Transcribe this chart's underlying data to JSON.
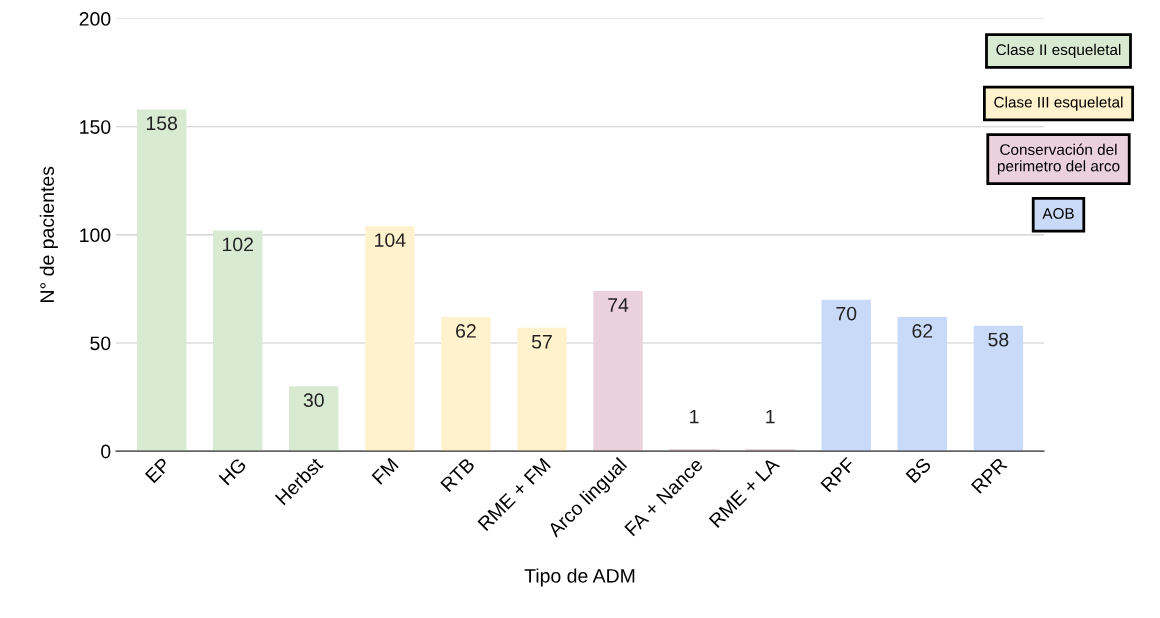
{
  "chart_data": {
    "type": "bar",
    "xlabel": "Tipo de ADM",
    "ylabel": "N° de pacientes",
    "categories": [
      "EP",
      "HG",
      "Herbst",
      "FM",
      "RTB",
      "RME + FM",
      "Arco lingual",
      "FA + Nance",
      "RME + LA",
      "RPF",
      "BS",
      "RPR"
    ],
    "series": [
      {
        "name": "Clase II esqueletal",
        "color": "#d9ead3",
        "values": [
          158,
          102,
          30,
          null,
          null,
          null,
          null,
          null,
          null,
          null,
          null,
          null
        ]
      },
      {
        "name": "Clase III esqueletal",
        "color": "#fff2cc",
        "values": [
          null,
          null,
          null,
          104,
          62,
          57,
          null,
          null,
          null,
          null,
          null,
          null
        ]
      },
      {
        "name": "Conservación del perimetro del arco",
        "color": "#ead1dc",
        "values": [
          null,
          null,
          null,
          null,
          null,
          null,
          74,
          1,
          1,
          null,
          null,
          null
        ]
      },
      {
        "name": "AOB",
        "color": "#c9daf8",
        "values": [
          null,
          null,
          null,
          null,
          null,
          null,
          null,
          null,
          null,
          70,
          62,
          58
        ]
      }
    ],
    "ylim": [
      0,
      200
    ],
    "yticks": [
      0,
      50,
      100,
      150,
      200
    ],
    "grid": "y",
    "legend": "top right",
    "data_labels": true
  }
}
